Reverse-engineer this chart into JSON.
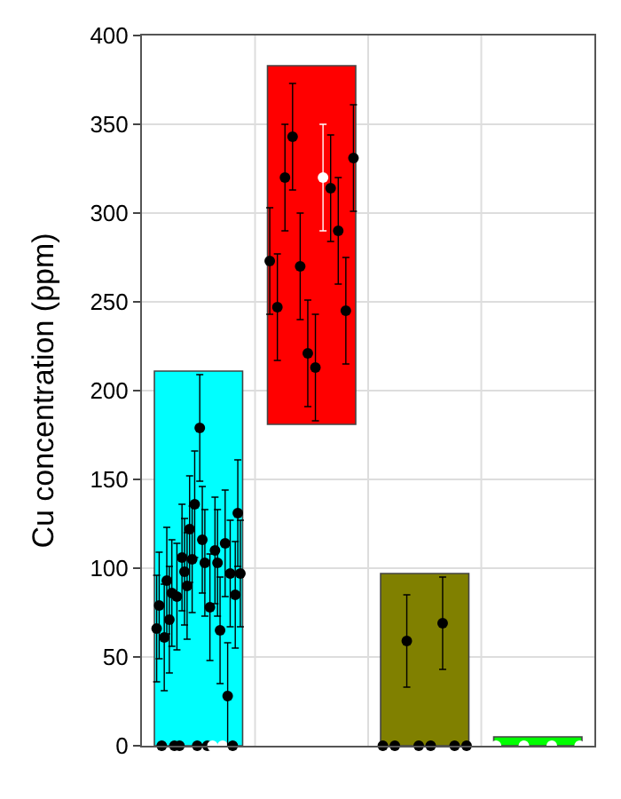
{
  "chart_data": {
    "type": "bar",
    "ylabel": "Cu concentration (ppm)",
    "categories": [
      null,
      null,
      null,
      null
    ],
    "ylim": [
      0,
      400
    ],
    "yticks": [
      0,
      50,
      100,
      150,
      200,
      250,
      300,
      350,
      400
    ],
    "grid": true,
    "marker": "circle",
    "series": [
      {
        "values": [
          211,
          202,
          97,
          5
        ],
        "base": [
          0,
          181,
          0,
          0
        ],
        "colors": [
          "#00ffff",
          "#ff0000",
          "#808000",
          "#00ff00"
        ]
      },
      {
        "type": "scatter",
        "values": [
          66,
          273,
          0,
          0
        ],
        "colors": [
          "#000000",
          "#000000",
          "#000000",
          "#ffffff"
        ],
        "errors": [
          30,
          30,
          null,
          null
        ]
      },
      {
        "type": "scatter",
        "values": [
          79,
          247,
          0,
          0
        ],
        "colors": [
          "#000000",
          "#000000",
          "#000000",
          "#ffffff"
        ],
        "errors": [
          30,
          30,
          null,
          null
        ]
      },
      {
        "type": "scatter",
        "values": [
          0,
          320,
          59,
          0
        ],
        "colors": [
          "#000000",
          "#000000",
          "#000000",
          "#ffffff"
        ],
        "errors": [
          null,
          30,
          26,
          null
        ]
      },
      {
        "type": "scatter",
        "values": [
          61,
          343,
          0,
          0
        ],
        "colors": [
          "#000000",
          "#000000",
          "#000000",
          "#ffffff"
        ],
        "errors": [
          30,
          30,
          null,
          null
        ]
      },
      {
        "type": "scatter",
        "values": [
          93,
          270,
          0,
          null
        ],
        "colors": [
          "#000000",
          "#000000",
          "#000000",
          null
        ],
        "errors": [
          30,
          30,
          null,
          null
        ]
      },
      {
        "type": "scatter",
        "values": [
          71,
          221,
          69,
          null
        ],
        "colors": [
          "#000000",
          "#000000",
          "#000000",
          null
        ],
        "errors": [
          30,
          30,
          26,
          null
        ]
      },
      {
        "type": "scatter",
        "values": [
          86,
          213,
          0,
          null
        ],
        "colors": [
          "#000000",
          "#000000",
          "#000000",
          null
        ],
        "errors": [
          30,
          30,
          null,
          null
        ]
      },
      {
        "type": "scatter",
        "values": [
          0,
          320,
          0,
          null
        ],
        "colors": [
          "#000000",
          "#ffffff",
          "#000000",
          null
        ],
        "errors": [
          null,
          30,
          null,
          null
        ]
      },
      {
        "type": "scatter",
        "values": [
          84,
          314,
          null,
          null
        ],
        "colors": [
          "#000000",
          "#000000",
          null,
          null
        ],
        "errors": [
          30,
          30,
          null,
          null
        ]
      },
      {
        "type": "scatter",
        "values": [
          0,
          290,
          null,
          null
        ],
        "colors": [
          "#000000",
          "#000000",
          null,
          null
        ],
        "errors": [
          null,
          30,
          null,
          null
        ]
      },
      {
        "type": "scatter",
        "values": [
          106,
          245,
          null,
          null
        ],
        "colors": [
          "#000000",
          "#000000",
          null,
          null
        ],
        "errors": [
          30,
          30,
          null,
          null
        ]
      },
      {
        "type": "scatter",
        "values": [
          98,
          331,
          null,
          null
        ],
        "colors": [
          "#000000",
          "#000000",
          null,
          null
        ],
        "errors": [
          30,
          30,
          null,
          null
        ]
      },
      {
        "type": "scatter",
        "values": [
          90,
          null,
          null,
          null
        ],
        "colors": [
          "#000000",
          null,
          null,
          null
        ],
        "errors": [
          30,
          null,
          null,
          null
        ]
      },
      {
        "type": "scatter",
        "values": [
          122,
          null,
          null,
          null
        ],
        "colors": [
          "#000000",
          null,
          null,
          null
        ],
        "errors": [
          30,
          null,
          null,
          null
        ]
      },
      {
        "type": "scatter",
        "values": [
          105,
          null,
          null,
          null
        ],
        "colors": [
          "#000000",
          null,
          null,
          null
        ],
        "errors": [
          30,
          null,
          null,
          null
        ]
      },
      {
        "type": "scatter",
        "values": [
          136,
          null,
          null,
          null
        ],
        "colors": [
          "#000000",
          null,
          null,
          null
        ],
        "errors": [
          30,
          null,
          null,
          null
        ]
      },
      {
        "type": "scatter",
        "values": [
          0,
          null,
          null,
          null
        ],
        "colors": [
          "#000000",
          null,
          null,
          null
        ],
        "errors": [
          null,
          null,
          null,
          null
        ]
      },
      {
        "type": "scatter",
        "values": [
          179,
          null,
          null,
          null
        ],
        "colors": [
          "#000000",
          null,
          null,
          null
        ],
        "errors": [
          30,
          null,
          null,
          null
        ]
      },
      {
        "type": "scatter",
        "values": [
          116,
          null,
          null,
          null
        ],
        "colors": [
          "#000000",
          null,
          null,
          null
        ],
        "errors": [
          30,
          null,
          null,
          null
        ]
      },
      {
        "type": "scatter",
        "values": [
          103,
          null,
          null,
          null
        ],
        "colors": [
          "#000000",
          null,
          null,
          null
        ],
        "errors": [
          30,
          null,
          null,
          null
        ]
      },
      {
        "type": "scatter",
        "values": [
          0,
          null,
          null,
          null
        ],
        "colors": [
          "#000000",
          null,
          null,
          null
        ],
        "errors": [
          null,
          null,
          null,
          null
        ]
      },
      {
        "type": "scatter",
        "values": [
          78,
          null,
          null,
          null
        ],
        "colors": [
          "#000000",
          null,
          null,
          null
        ],
        "errors": [
          30,
          null,
          null,
          null
        ]
      },
      {
        "type": "scatter",
        "values": [
          0,
          null,
          null,
          null
        ],
        "colors": [
          "#ffffff",
          null,
          null,
          null
        ],
        "errors": [
          null,
          null,
          null,
          null
        ]
      },
      {
        "type": "scatter",
        "values": [
          110,
          null,
          null,
          null
        ],
        "colors": [
          "#000000",
          null,
          null,
          null
        ],
        "errors": [
          30,
          null,
          null,
          null
        ]
      },
      {
        "type": "scatter",
        "values": [
          103,
          null,
          null,
          null
        ],
        "colors": [
          "#000000",
          null,
          null,
          null
        ],
        "errors": [
          30,
          null,
          null,
          null
        ]
      },
      {
        "type": "scatter",
        "values": [
          65,
          null,
          null,
          null
        ],
        "colors": [
          "#000000",
          null,
          null,
          null
        ],
        "errors": [
          30,
          null,
          null,
          null
        ]
      },
      {
        "type": "scatter",
        "values": [
          0,
          null,
          null,
          null
        ],
        "colors": [
          "#ffffff",
          null,
          null,
          null
        ],
        "errors": [
          null,
          null,
          null,
          null
        ]
      },
      {
        "type": "scatter",
        "values": [
          114,
          null,
          null,
          null
        ],
        "colors": [
          "#000000",
          null,
          null,
          null
        ],
        "errors": [
          30,
          null,
          null,
          null
        ]
      },
      {
        "type": "scatter",
        "values": [
          28,
          null,
          null,
          null
        ],
        "colors": [
          "#000000",
          null,
          null,
          null
        ],
        "errors": [
          30,
          null,
          null,
          null
        ]
      },
      {
        "type": "scatter",
        "values": [
          97,
          null,
          null,
          null
        ],
        "colors": [
          "#000000",
          null,
          null,
          null
        ],
        "errors": [
          30,
          null,
          null,
          null
        ]
      },
      {
        "type": "scatter",
        "values": [
          0,
          null,
          null,
          null
        ],
        "colors": [
          "#000000",
          null,
          null,
          null
        ],
        "errors": [
          null,
          null,
          null,
          null
        ]
      },
      {
        "type": "scatter",
        "values": [
          85,
          null,
          null,
          null
        ],
        "colors": [
          "#000000",
          null,
          null,
          null
        ],
        "errors": [
          30,
          null,
          null,
          null
        ]
      },
      {
        "type": "scatter",
        "values": [
          131,
          null,
          null,
          null
        ],
        "colors": [
          "#000000",
          null,
          null,
          null
        ],
        "errors": [
          30,
          null,
          null,
          null
        ]
      },
      {
        "type": "scatter",
        "values": [
          97,
          null,
          null,
          null
        ],
        "colors": [
          "#000000",
          null,
          null,
          null
        ],
        "errors": [
          30,
          null,
          null,
          null
        ]
      }
    ]
  }
}
